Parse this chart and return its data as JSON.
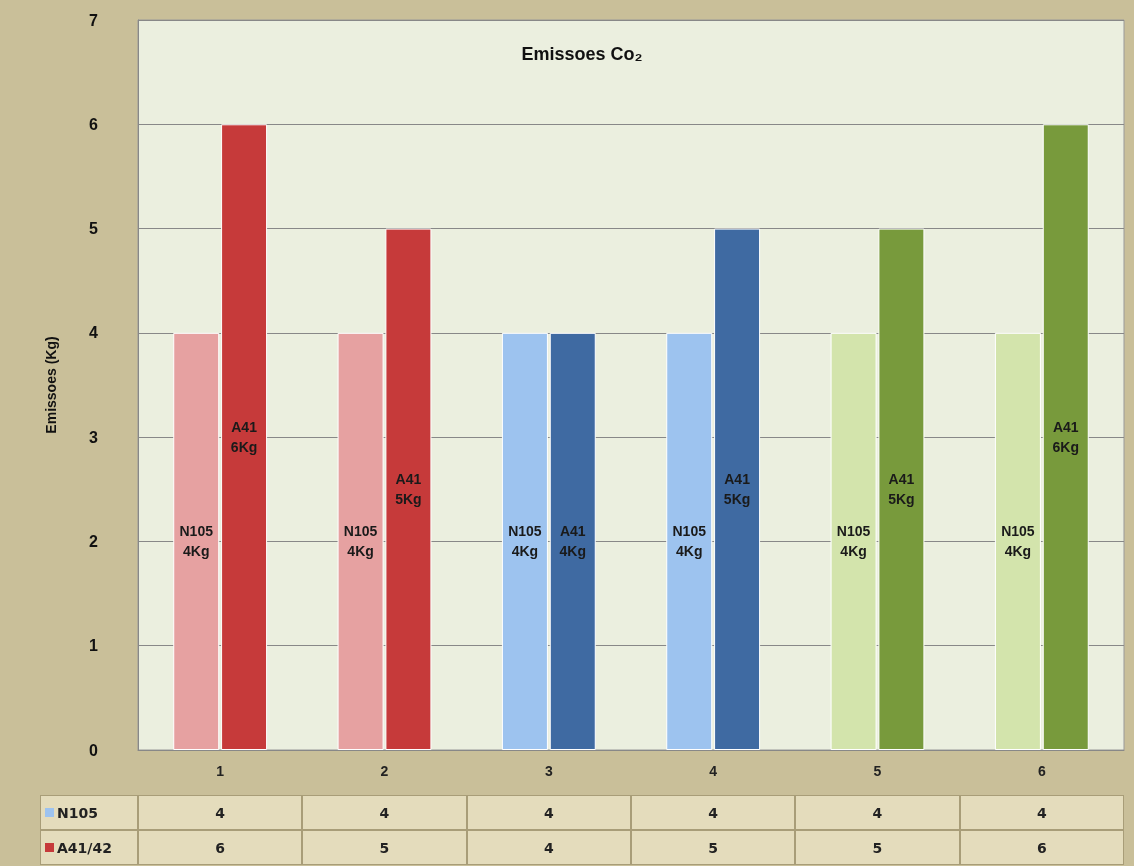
{
  "chart_data": {
    "type": "bar",
    "title": "Emissoes Co₂",
    "ylabel": "Emissoes (Kg)",
    "categories": [
      "1",
      "2",
      "3",
      "4",
      "5",
      "6"
    ],
    "series": [
      {
        "name": "N105",
        "color": "#9dc3ef",
        "colors": [
          "#e6a1a1",
          "#e6a1a1",
          "#9dc3ef",
          "#9dc3ef",
          "#d3e4ac",
          "#d3e4ac"
        ],
        "values": [
          4,
          4,
          4,
          4,
          4,
          4
        ],
        "value_labels": [
          "N105\n4Kg",
          "N105\n4Kg",
          "N105\n4Kg",
          "N105\n4Kg",
          "N105\n4Kg",
          "N105\n4Kg"
        ]
      },
      {
        "name": "A41/42",
        "color": "#c63a3a",
        "colors": [
          "#c63a3a",
          "#c63a3a",
          "#3f6aa2",
          "#3f6aa2",
          "#789a3c",
          "#789a3c"
        ],
        "values": [
          6,
          5,
          4,
          5,
          5,
          6
        ],
        "value_labels": [
          "A41\n6Kg",
          "A41\n5Kg",
          "A41\n4Kg",
          "A41\n5Kg",
          "A41\n5Kg",
          "A41\n6Kg"
        ]
      }
    ],
    "ylim": [
      0,
      7
    ],
    "yticks": [
      0,
      1,
      2,
      3,
      4,
      5,
      6,
      7
    ],
    "grid": "y",
    "legend": "bottom",
    "data_labels": true
  }
}
